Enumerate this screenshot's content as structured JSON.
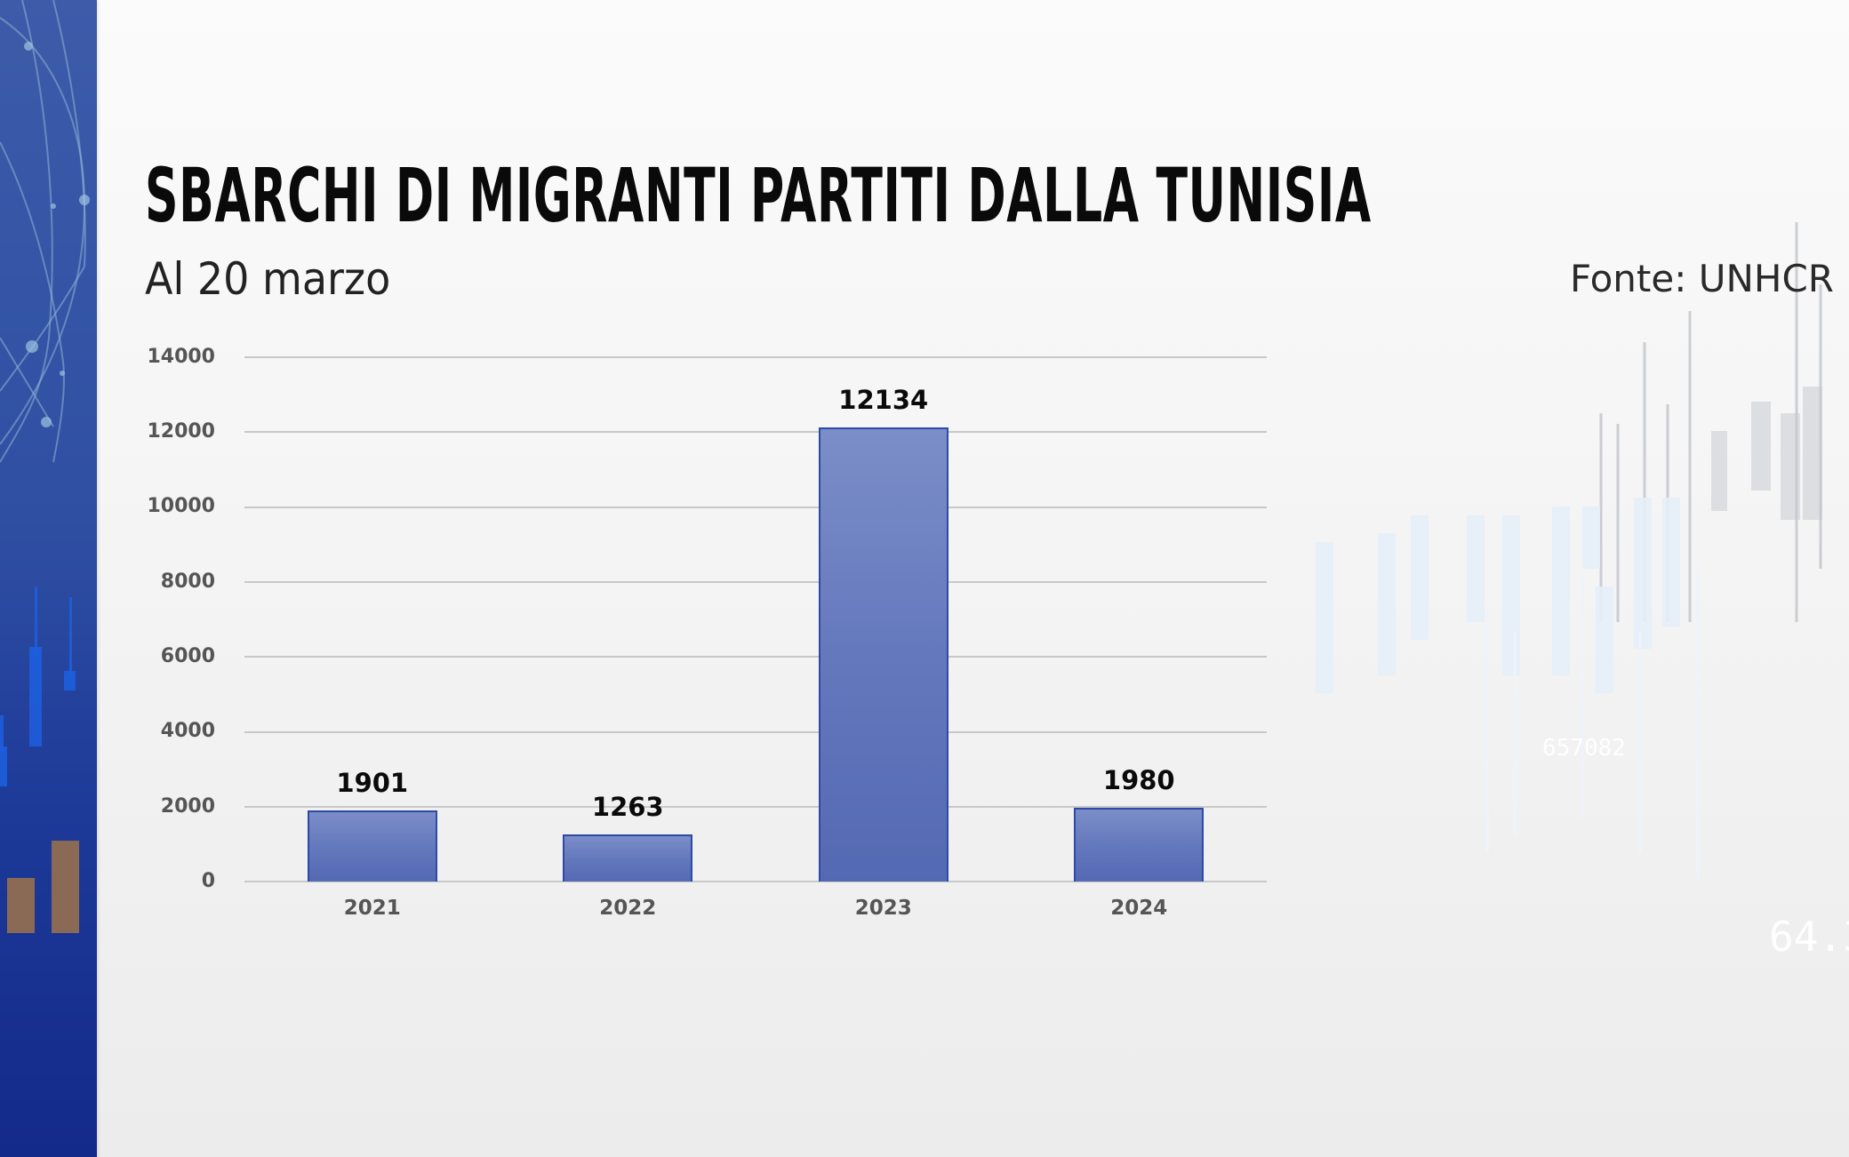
{
  "title": "SBARCHI DI MIGRANTI PARTITI DALLA TUNISIA",
  "subtitle": "Al 20 marzo",
  "source": "Fonte: UNHCR",
  "colors": {
    "bar_fill": "#6478bd",
    "bar_border": "#2c4aa6",
    "side_panel": "#2f4fa3",
    "gridline": "#c8c8c8",
    "background": "#f3f3f3"
  },
  "y_ticks": [
    "14000",
    "12000",
    "10000",
    "8000",
    "6000",
    "4000",
    "2000",
    "0"
  ],
  "chart_data": {
    "type": "bar",
    "title": "SBARCHI DI MIGRANTI PARTITI DALLA TUNISIA",
    "subtitle": "Al 20 marzo",
    "source": "Fonte: UNHCR",
    "categories": [
      "2021",
      "2022",
      "2023",
      "2024"
    ],
    "values": [
      1901,
      1263,
      12134,
      1980
    ],
    "data_labels": [
      "1901",
      "1263",
      "12134",
      "1980"
    ],
    "xlabel": "",
    "ylabel": "",
    "ylim": [
      0,
      14000
    ],
    "y_tick_step": 2000,
    "grid": true,
    "legend": "none"
  }
}
